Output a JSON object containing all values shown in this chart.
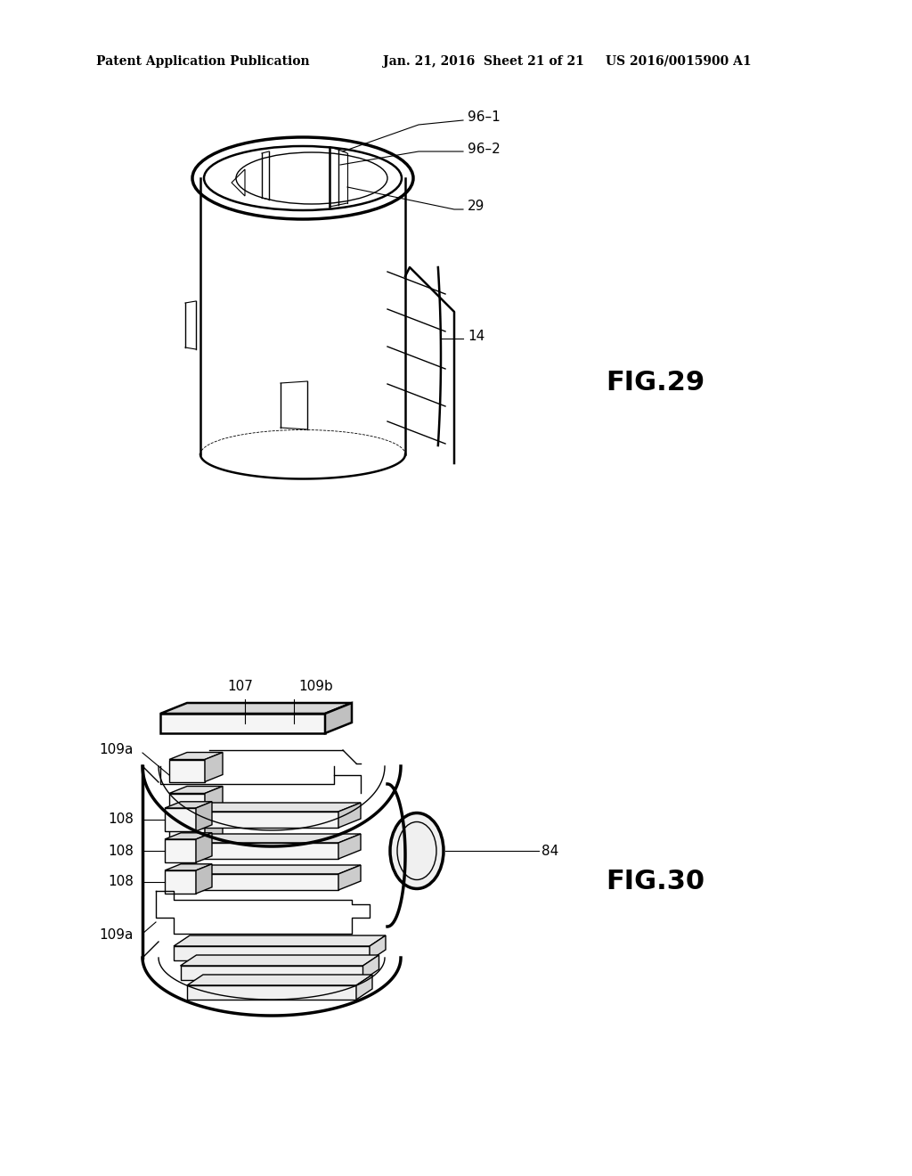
{
  "background_color": "#ffffff",
  "header_left": "Patent Application Publication",
  "header_mid": "Jan. 21, 2016  Sheet 21 of 21",
  "header_right": "US 2016/0015900 A1",
  "fig29_label": "FIG.29",
  "fig30_label": "FIG.30",
  "line_color": "#000000",
  "fill_light": "#f0f0f0",
  "fill_mid": "#d8d8d8",
  "fill_dark": "#c0c0c0"
}
